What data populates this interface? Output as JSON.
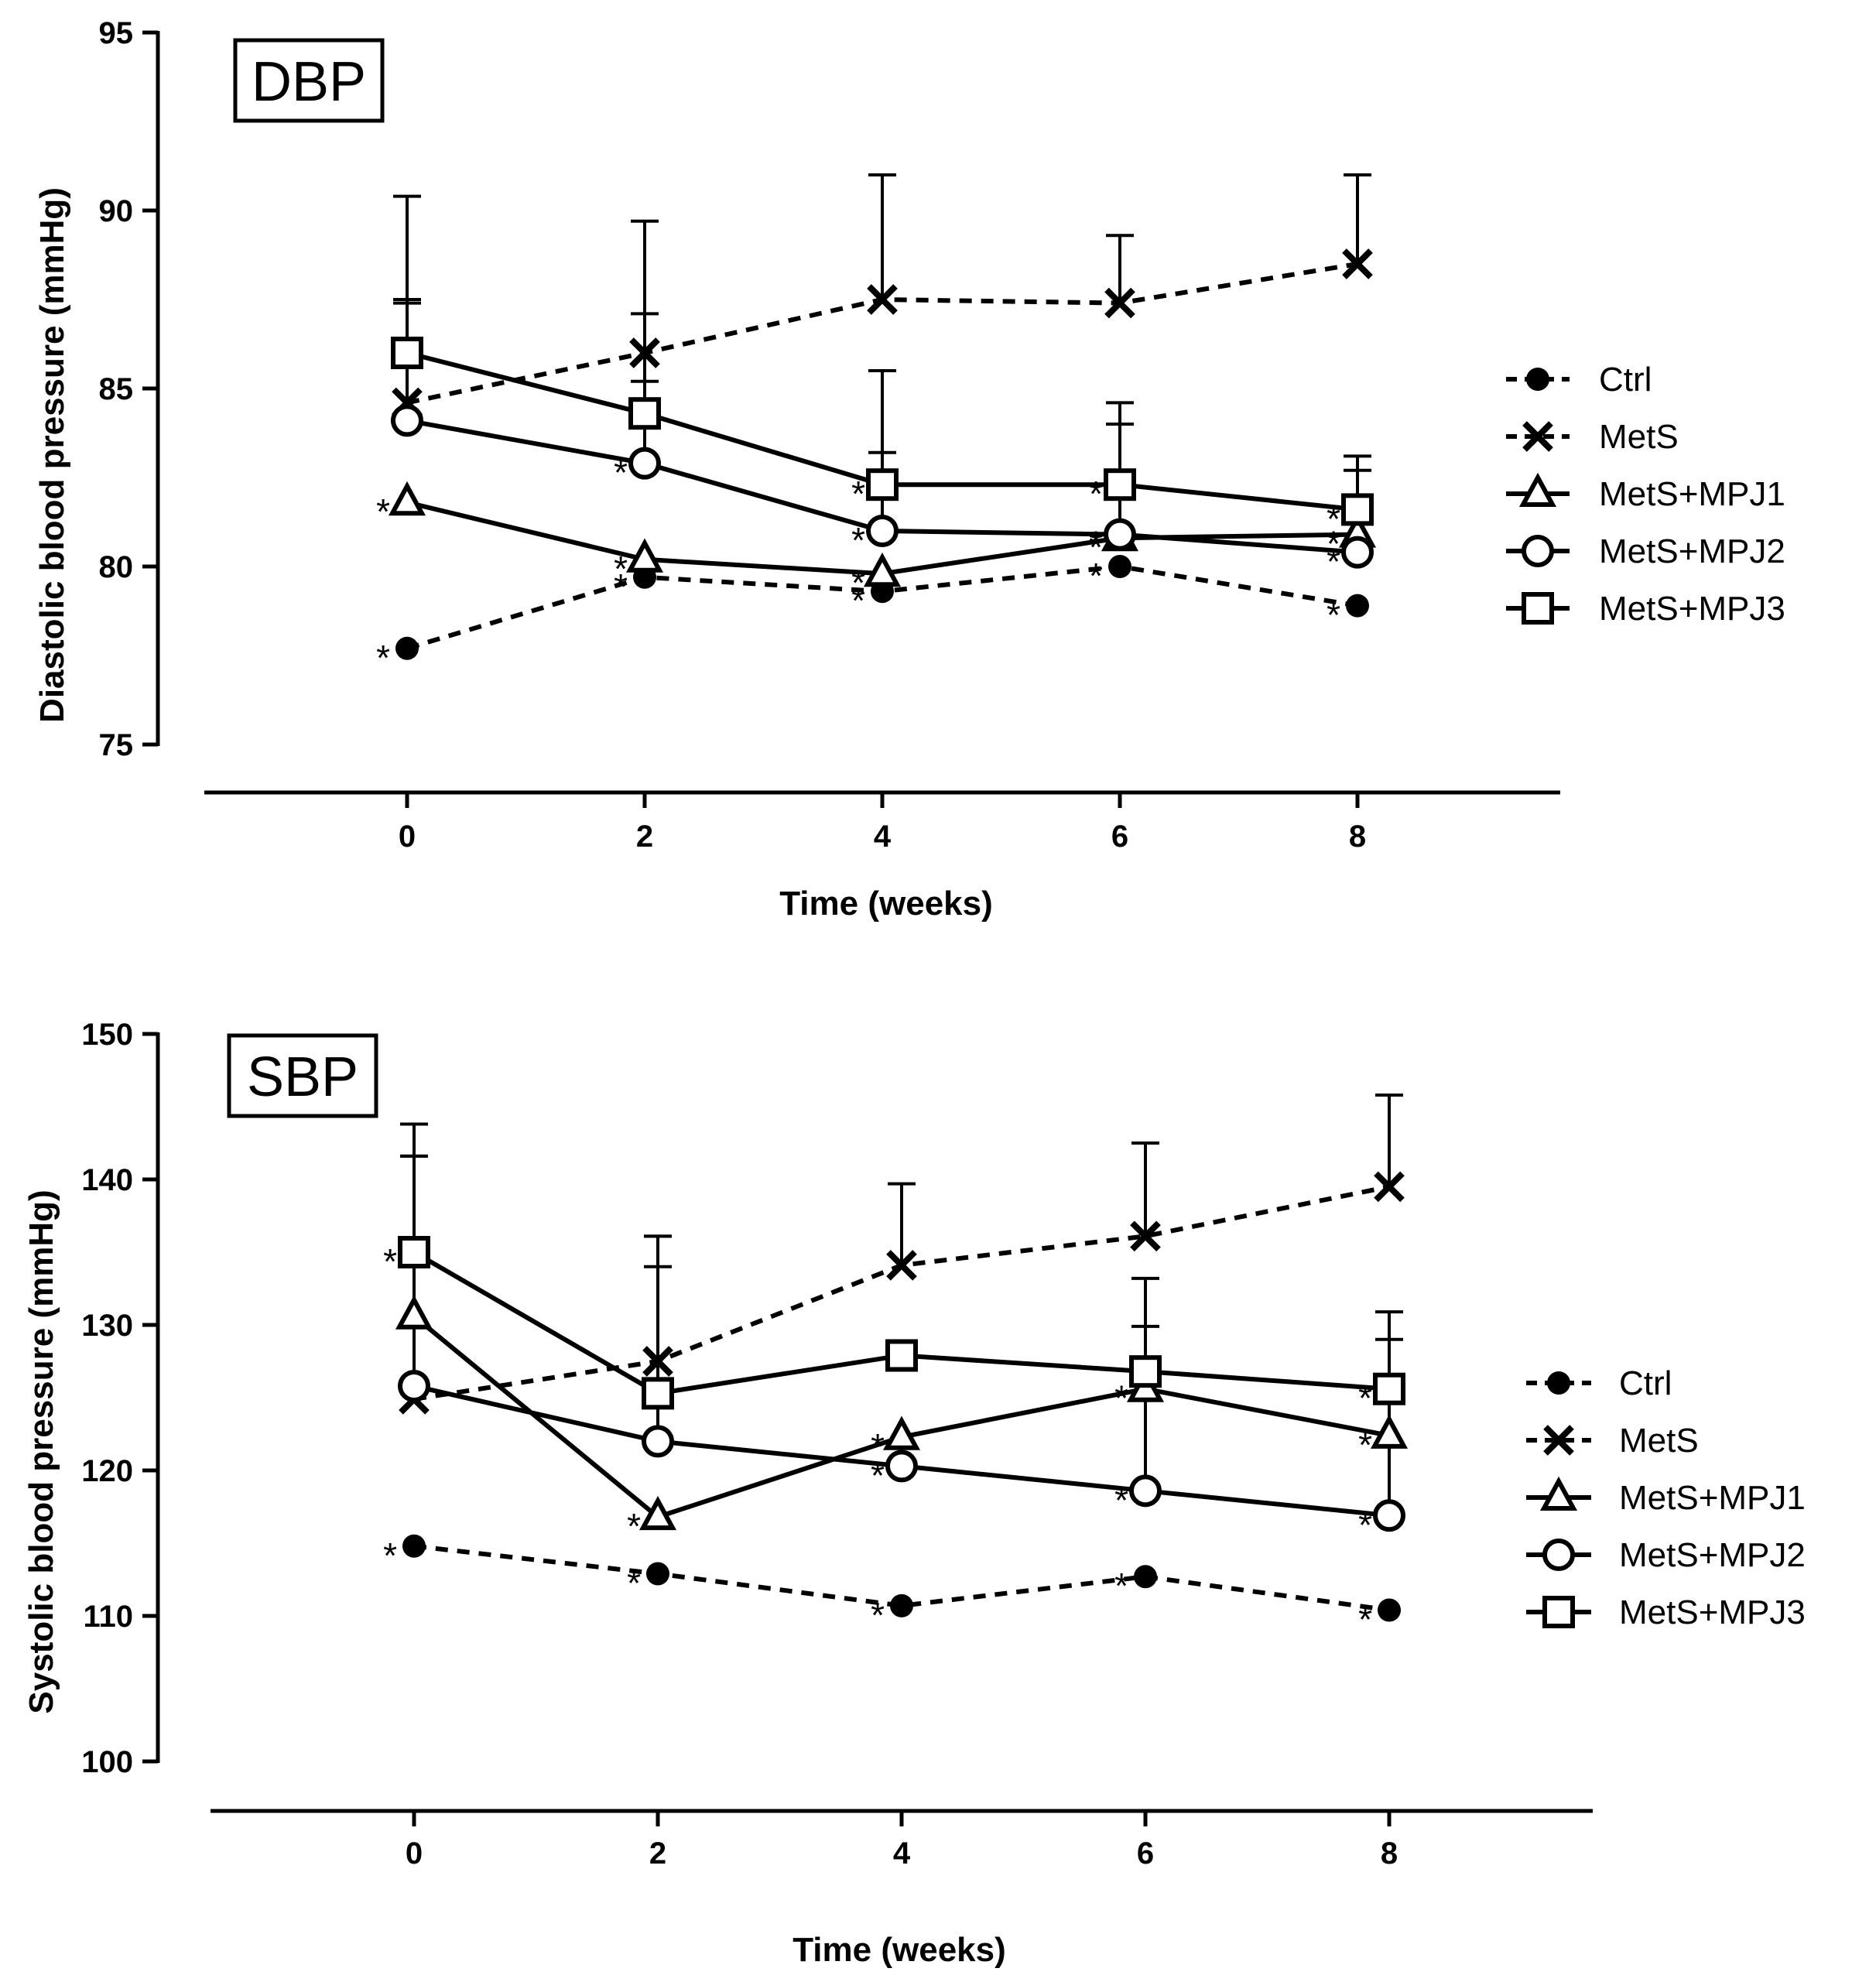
{
  "chart_data": [
    {
      "type": "line",
      "panel_label": "DBP",
      "xlabel": "Time (weeks)",
      "ylabel": "Diastolic blood pressure (mmHg)",
      "x": [
        0,
        2,
        4,
        6,
        8
      ],
      "xlim": [
        -1.7,
        9.7
      ],
      "ylim": [
        75,
        95
      ],
      "yticks": [
        75,
        80,
        85,
        90,
        95
      ],
      "legend_position": "right",
      "series": [
        {
          "name": "Ctrl",
          "marker": "filled-circle",
          "dash": true,
          "values": [
            77.7,
            79.7,
            79.3,
            80.0,
            78.9
          ],
          "err": [
            0,
            0,
            0,
            0,
            0
          ],
          "stars": [
            true,
            true,
            true,
            true,
            true
          ]
        },
        {
          "name": "MetS",
          "marker": "x",
          "dash": true,
          "values": [
            84.6,
            86.0,
            87.5,
            87.4,
            88.5
          ],
          "err": [
            2.9,
            3.7,
            3.5,
            1.9,
            2.5
          ],
          "stars": [
            false,
            false,
            false,
            false,
            false
          ]
        },
        {
          "name": "MetS+MPJ1",
          "marker": "triangle",
          "dash": false,
          "values": [
            81.8,
            80.2,
            79.8,
            80.8,
            80.9
          ],
          "err": [
            0,
            0,
            0,
            0,
            0
          ],
          "stars": [
            true,
            true,
            true,
            true,
            true
          ]
        },
        {
          "name": "MetS+MPJ2",
          "marker": "circle",
          "dash": false,
          "values": [
            84.1,
            82.9,
            81.0,
            80.9,
            80.4
          ],
          "err": [
            3.3,
            2.3,
            2.2,
            3.1,
            2.3
          ],
          "stars": [
            false,
            true,
            true,
            true,
            true
          ]
        },
        {
          "name": "MetS+MPJ3",
          "marker": "square",
          "dash": false,
          "values": [
            86.0,
            84.3,
            82.3,
            82.3,
            81.6
          ],
          "err": [
            4.4,
            2.8,
            3.2,
            2.3,
            1.5
          ],
          "stars": [
            false,
            false,
            true,
            true,
            true
          ]
        }
      ]
    },
    {
      "type": "line",
      "panel_label": "SBP",
      "xlabel": "Time (weeks)",
      "ylabel": "Systolic blood pressure (mmHg)",
      "x": [
        0,
        2,
        4,
        6,
        8
      ],
      "xlim": [
        -1.7,
        9.7
      ],
      "ylim": [
        100,
        150
      ],
      "yticks": [
        100,
        110,
        120,
        130,
        140,
        150
      ],
      "legend_position": "right",
      "series": [
        {
          "name": "Ctrl",
          "marker": "filled-circle",
          "dash": true,
          "values": [
            114.8,
            112.9,
            110.7,
            112.7,
            110.4
          ],
          "err": [
            0,
            0,
            0,
            0,
            0
          ],
          "stars": [
            true,
            true,
            true,
            true,
            true
          ]
        },
        {
          "name": "MetS",
          "marker": "x",
          "dash": true,
          "values": [
            124.9,
            127.5,
            134.1,
            136.1,
            139.5
          ],
          "err": [
            16.7,
            8.6,
            5.6,
            6.4,
            6.3
          ],
          "stars": [
            false,
            false,
            false,
            false,
            false
          ]
        },
        {
          "name": "MetS+MPJ1",
          "marker": "triangle",
          "dash": false,
          "values": [
            130.6,
            116.8,
            122.3,
            125.6,
            122.4
          ],
          "err": [
            0,
            0,
            0,
            0,
            0
          ],
          "stars": [
            false,
            true,
            true,
            true,
            true
          ]
        },
        {
          "name": "MetS+MPJ2",
          "marker": "circle",
          "dash": false,
          "values": [
            125.8,
            122.0,
            120.3,
            118.6,
            116.9
          ],
          "err": [
            15.8,
            12.0,
            0,
            11.3,
            12.1
          ],
          "stars": [
            false,
            false,
            true,
            true,
            true
          ]
        },
        {
          "name": "MetS+MPJ3",
          "marker": "square",
          "dash": false,
          "values": [
            135.0,
            125.3,
            127.9,
            126.8,
            125.6
          ],
          "err": [
            8.8,
            10.8,
            0,
            6.4,
            5.3
          ],
          "stars": [
            true,
            false,
            false,
            false,
            true
          ]
        }
      ]
    }
  ]
}
